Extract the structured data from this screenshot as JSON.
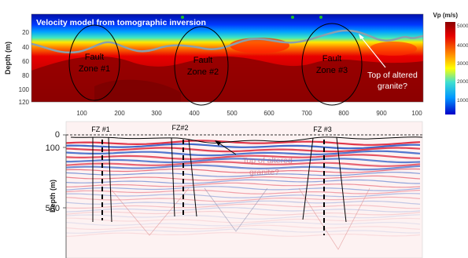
{
  "top_panel": {
    "title": "Velocity model from tomographic inversion",
    "y_axis_label": "Depth (m)",
    "y_ticks": [
      "20",
      "40",
      "60",
      "80",
      "100",
      "120"
    ],
    "x_ticks": [
      "100",
      "200",
      "300",
      "400",
      "500",
      "600",
      "700",
      "800",
      "900",
      "100"
    ],
    "fault_zones": [
      {
        "line1": "Fault",
        "line2": "Zone #1"
      },
      {
        "line1": "Fault",
        "line2": "Zone #2"
      },
      {
        "line1": "Fault",
        "line2": "Zone #3"
      }
    ],
    "annotation": {
      "line1": "Top of altered",
      "line2": "granite?"
    },
    "colorbar": {
      "title": "Vp (m/s)",
      "ticks": [
        "5000",
        "4000",
        "3000",
        "2000",
        "1000"
      ],
      "colors": [
        "#8b0000",
        "#e60000",
        "#ff8c00",
        "#ffff00",
        "#40e0d0",
        "#0096ff",
        "#0000c8"
      ]
    },
    "colors": {
      "deep": "#8c0000",
      "high": "#e00000",
      "mid": "#ff8000",
      "near_surface": "#0038ff",
      "surface": "#0010a8",
      "interface_line": "#8aa0ad"
    }
  },
  "bottom_panel": {
    "y_axis_label": "Depth (m)",
    "y_ticks": [
      "0",
      "100",
      "500"
    ],
    "fz_labels": [
      "FZ #1",
      "FZ#2",
      "FZ #3"
    ],
    "faded_annotation": {
      "line1": "Top of altered",
      "line2": "granite?"
    },
    "colors": {
      "red": "#e0364a",
      "blue": "#3a64c8",
      "background": "#fdf2f2"
    }
  }
}
